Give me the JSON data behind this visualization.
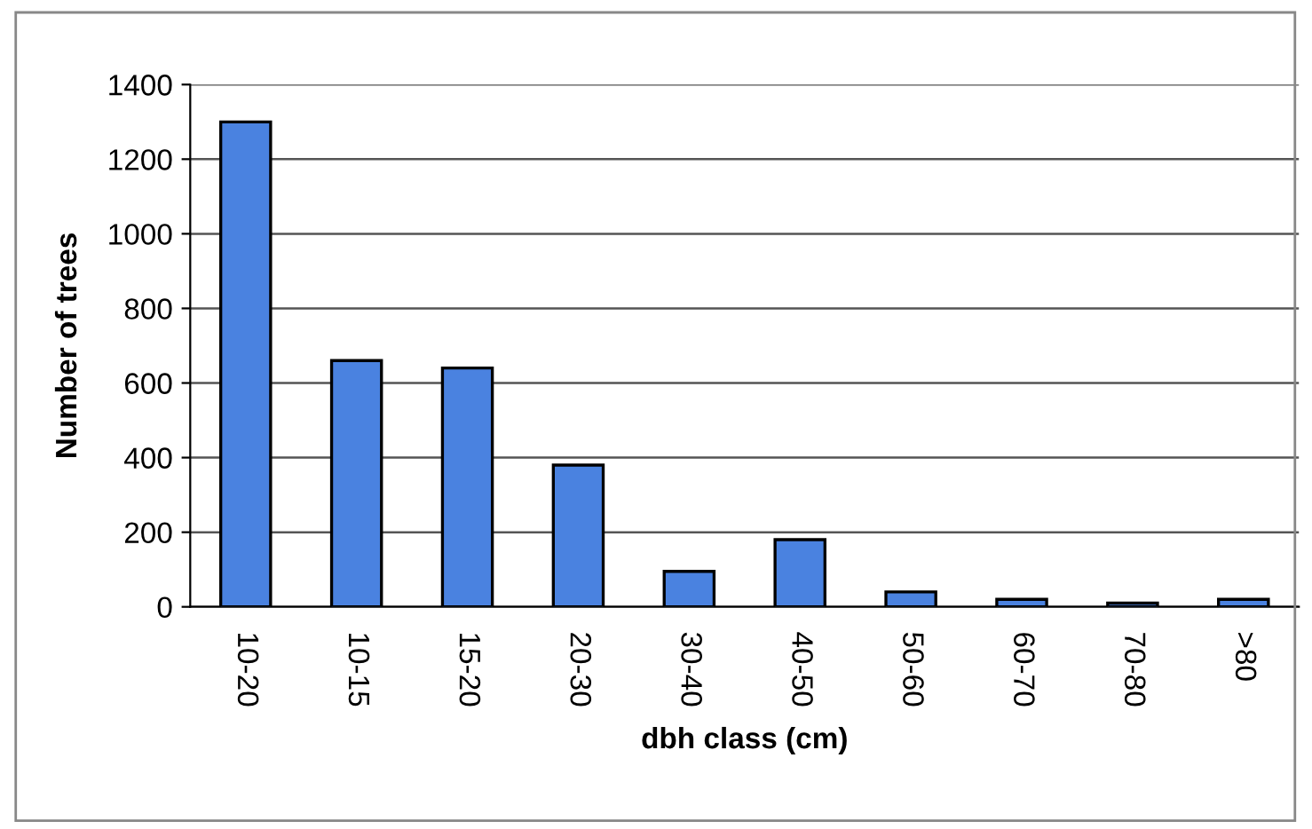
{
  "chart_data": {
    "type": "bar",
    "xlabel": "dbh class (cm)",
    "ylabel": "Number of trees",
    "categories": [
      "10-20",
      "10-15",
      "15-20",
      "20-30",
      "30-40",
      "40-50",
      "50-60",
      "60-70",
      "70-80",
      ">80"
    ],
    "values": [
      1300,
      660,
      640,
      380,
      95,
      180,
      40,
      20,
      10,
      20
    ],
    "color": "#4a82e0",
    "ylim": [
      0,
      1400
    ],
    "yticks": [
      0,
      200,
      400,
      600,
      800,
      1000,
      1200,
      1400
    ],
    "grid": "y",
    "legend": false
  }
}
